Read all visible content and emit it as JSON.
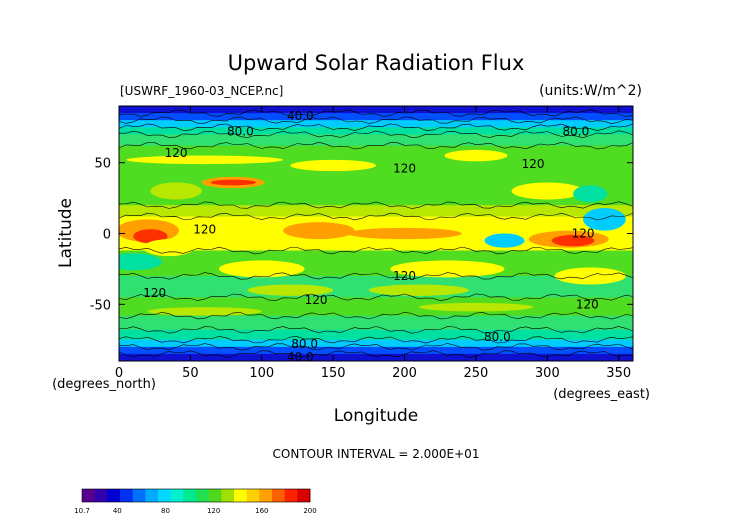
{
  "chart_data": {
    "type": "heatmap",
    "title": "Upward Solar Radiation Flux",
    "file_label": "[USWRF_1960-03_NCEP.nc]",
    "units_label": "(units:W/m^2)",
    "xlabel": "Longitude",
    "ylabel": "Latitude",
    "x_unit_label": "(degrees_east)",
    "y_unit_label": "(degrees_north)",
    "xlim": [
      0,
      360
    ],
    "ylim": [
      -90,
      90
    ],
    "x_ticks": [
      0,
      50,
      100,
      150,
      200,
      250,
      300,
      350
    ],
    "y_ticks": [
      -50,
      0,
      50
    ],
    "contour_interval_text": "CONTOUR INTERVAL = 2.000E+01",
    "contour_labels": [
      {
        "text": "40.0",
        "x": 127,
        "y": 83
      },
      {
        "text": "80.0",
        "x": 85,
        "y": 72
      },
      {
        "text": "80.0",
        "x": 320,
        "y": 72
      },
      {
        "text": "120",
        "x": 40,
        "y": 57
      },
      {
        "text": "120",
        "x": 200,
        "y": 46
      },
      {
        "text": "120",
        "x": 290,
        "y": 49
      },
      {
        "text": "120",
        "x": 60,
        "y": 3
      },
      {
        "text": "120",
        "x": 325,
        "y": 0
      },
      {
        "text": "120",
        "x": 200,
        "y": -30
      },
      {
        "text": "120",
        "x": 25,
        "y": -42
      },
      {
        "text": "120",
        "x": 138,
        "y": -47
      },
      {
        "text": "120",
        "x": 328,
        "y": -50
      },
      {
        "text": "80.0",
        "x": 130,
        "y": -78
      },
      {
        "text": "80.0",
        "x": 265,
        "y": -73
      },
      {
        "text": "40.0",
        "x": 127,
        "y": -87
      }
    ],
    "colorbar": {
      "min_label": "10.7",
      "max": 200,
      "ticks": [
        40,
        80,
        120,
        160,
        200
      ],
      "colors": [
        "#5a0090",
        "#3300b0",
        "#0000d0",
        "#0030f0",
        "#0070ff",
        "#00aaff",
        "#00d8ff",
        "#00f0d0",
        "#00e890",
        "#20e050",
        "#50d820",
        "#a0e000",
        "#ffff00",
        "#ffd000",
        "#ffa000",
        "#ff6000",
        "#ff2000",
        "#d80000"
      ]
    },
    "field_colors": {
      "deep_blue": "#1010d0",
      "blue": "#0050ff",
      "cyan": "#00ccff",
      "teal": "#00e0a0",
      "green_light": "#30e070",
      "green": "#50dc20",
      "yellow_green": "#b8e800",
      "yellow": "#ffff00",
      "orange": "#ffa000",
      "red": "#ff3000",
      "dark_red": "#c80000"
    }
  }
}
